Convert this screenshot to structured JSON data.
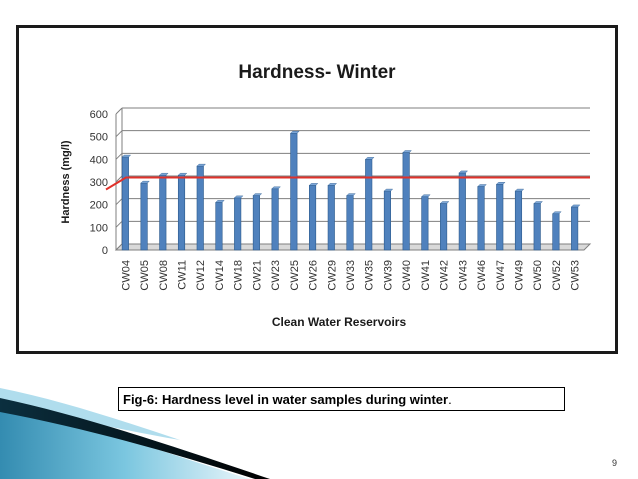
{
  "slide": {
    "caption": "Fig-6: Hardness level in water samples during winter",
    "caption_period": ".",
    "page_number": "9"
  },
  "chart_data": {
    "type": "bar",
    "title": "Hardness- Winter",
    "xlabel": "Clean Water Reservoirs",
    "ylabel": "Hardness (mg/l)",
    "ylim": [
      0,
      600
    ],
    "yticks": [
      "0",
      "100",
      "200",
      "300",
      "400",
      "500",
      "600"
    ],
    "grid": true,
    "categories": [
      "CW04",
      "CW05",
      "CW08",
      "CW11",
      "CW12",
      "CW14",
      "CW18",
      "CW21",
      "CW23",
      "CW25",
      "CW26",
      "CW29",
      "CW33",
      "CW35",
      "CW39",
      "CW40",
      "CW41",
      "CW42",
      "CW43",
      "CW46",
      "CW47",
      "CW49",
      "CW50",
      "CW52",
      "CW53"
    ],
    "values": [
      410,
      295,
      330,
      330,
      370,
      210,
      230,
      240,
      270,
      515,
      285,
      285,
      240,
      400,
      260,
      430,
      235,
      205,
      340,
      280,
      290,
      260,
      205,
      160,
      190
    ],
    "reference_line": {
      "value": 320,
      "color": "#e0312a"
    },
    "bar_color": "#4f81bd"
  }
}
